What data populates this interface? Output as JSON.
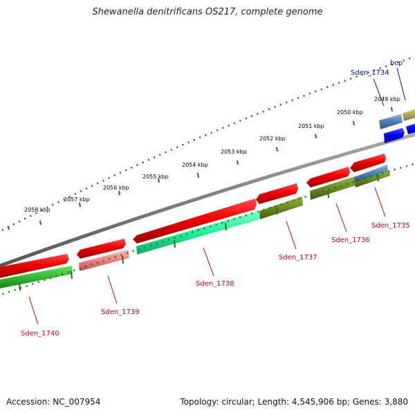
{
  "title": "Shewanella denitrificans OS217, complete genome",
  "footer": {
    "accession": "Accession: NC_007954",
    "summary": "Topology: circular; Length: 4,545,906 bp; Genes: 3,880"
  },
  "scale_labels": [
    "2049 kbp",
    "2050 kbp",
    "2051 kbp",
    "2052 kbp",
    "2053 kbp",
    "2054 kbp",
    "2055 kbp",
    "2056 kbp",
    "2057 kbp",
    "2058 kbp"
  ],
  "genes": [
    {
      "name": "bcp",
      "color": "#0000cc"
    },
    {
      "name": "Sden_1734",
      "color": "#0000cc"
    },
    {
      "name": "Sden_1735",
      "color": "#cc0000"
    },
    {
      "name": "Sden_1736",
      "color": "#cc0000"
    },
    {
      "name": "Sden_1737",
      "color": "#cc0000"
    },
    {
      "name": "Sden_1738",
      "color": "#cc0000"
    },
    {
      "name": "Sden_1739",
      "color": "#cc0000"
    },
    {
      "name": "Sden_1740",
      "color": "#cc0000"
    }
  ],
  "colors": {
    "backbone": "#7f7f7f",
    "forward_gene": "#ee0000",
    "reverse_gene": "#0000ee",
    "tick": "#117711"
  }
}
